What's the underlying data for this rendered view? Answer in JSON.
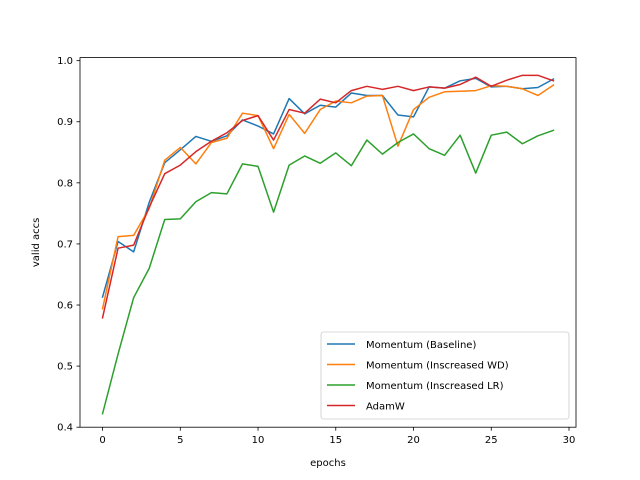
{
  "chart_data": {
    "type": "line",
    "xlabel": "epochs",
    "ylabel": "valid accs",
    "xlim": [
      -1.45,
      30.45
    ],
    "ylim": [
      0.4,
      1.005
    ],
    "xticks": [
      0,
      5,
      10,
      15,
      20,
      25,
      30
    ],
    "yticks": [
      0.4,
      0.5,
      0.6,
      0.7,
      0.8,
      0.9,
      1.0
    ],
    "xtick_labels": [
      "0",
      "5",
      "10",
      "15",
      "20",
      "25",
      "30"
    ],
    "ytick_labels": [
      "0.4",
      "0.5",
      "0.6",
      "0.7",
      "0.8",
      "0.9",
      "1.0"
    ],
    "grid": false,
    "legend_position": "lower-right",
    "x": [
      0,
      1,
      2,
      3,
      4,
      5,
      6,
      7,
      8,
      9,
      10,
      11,
      12,
      13,
      14,
      15,
      16,
      17,
      18,
      19,
      20,
      21,
      22,
      23,
      24,
      25,
      26,
      27,
      28,
      29
    ],
    "series": [
      {
        "name": "Momentum (Baseline)",
        "color": "#1f77b4",
        "values": [
          0.613,
          0.704,
          0.687,
          0.768,
          0.833,
          0.854,
          0.876,
          0.868,
          0.877,
          0.903,
          0.893,
          0.88,
          0.938,
          0.913,
          0.927,
          0.924,
          0.947,
          0.943,
          0.943,
          0.911,
          0.908,
          0.957,
          0.955,
          0.967,
          0.971,
          0.957,
          0.958,
          0.954,
          0.956,
          0.97
        ]
      },
      {
        "name": "Momentum (Inscreased WD)",
        "color": "#ff7f0e",
        "values": [
          0.594,
          0.712,
          0.714,
          0.758,
          0.837,
          0.858,
          0.831,
          0.866,
          0.873,
          0.914,
          0.91,
          0.856,
          0.912,
          0.881,
          0.92,
          0.934,
          0.931,
          0.942,
          0.943,
          0.86,
          0.92,
          0.94,
          0.949,
          0.95,
          0.951,
          0.959,
          0.958,
          0.954,
          0.943,
          0.96
        ]
      },
      {
        "name": "Momentum (Inscreased LR)",
        "color": "#2ca02c",
        "values": [
          0.422,
          0.52,
          0.612,
          0.66,
          0.74,
          0.741,
          0.769,
          0.784,
          0.782,
          0.831,
          0.827,
          0.752,
          0.829,
          0.844,
          0.832,
          0.849,
          0.828,
          0.87,
          0.847,
          0.866,
          0.88,
          0.856,
          0.845,
          0.878,
          0.816,
          0.878,
          0.883,
          0.864,
          0.877,
          0.886
        ]
      },
      {
        "name": "AdamW",
        "color": "#d62728",
        "values": [
          0.579,
          0.693,
          0.698,
          0.76,
          0.815,
          0.829,
          0.851,
          0.868,
          0.882,
          0.902,
          0.91,
          0.87,
          0.92,
          0.914,
          0.937,
          0.931,
          0.951,
          0.958,
          0.953,
          0.958,
          0.951,
          0.957,
          0.955,
          0.961,
          0.973,
          0.958,
          0.968,
          0.976,
          0.976,
          0.967
        ]
      }
    ]
  }
}
